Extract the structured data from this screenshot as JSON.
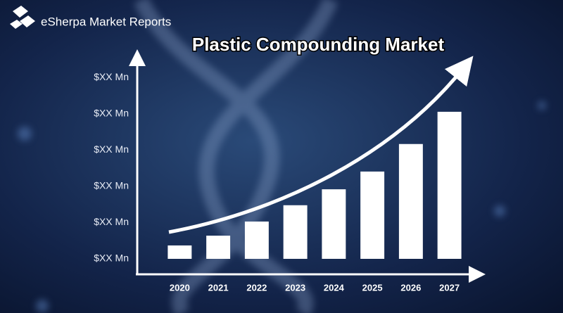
{
  "brand": "eSherpa Market Reports",
  "chart_data": {
    "type": "bar",
    "title": "Plastic Compounding Market",
    "categories": [
      "2020",
      "2021",
      "2022",
      "2023",
      "2024",
      "2025",
      "2026",
      "2027"
    ],
    "values": [
      0.37,
      0.64,
      1.03,
      1.48,
      1.92,
      2.41,
      3.17,
      4.06
    ],
    "color": "#ffffff",
    "ylim": [
      -0.4,
      5.6
    ],
    "yticks": [
      {
        "value": 0,
        "label": "$XX Mn"
      },
      {
        "value": 1,
        "label": "$XX Mn"
      },
      {
        "value": 2,
        "label": "$XX Mn"
      },
      {
        "value": 3,
        "label": "$XX Mn"
      },
      {
        "value": 4,
        "label": "$XX Mn"
      },
      {
        "value": 5,
        "label": "$XX Mn"
      }
    ],
    "grid": false
  }
}
